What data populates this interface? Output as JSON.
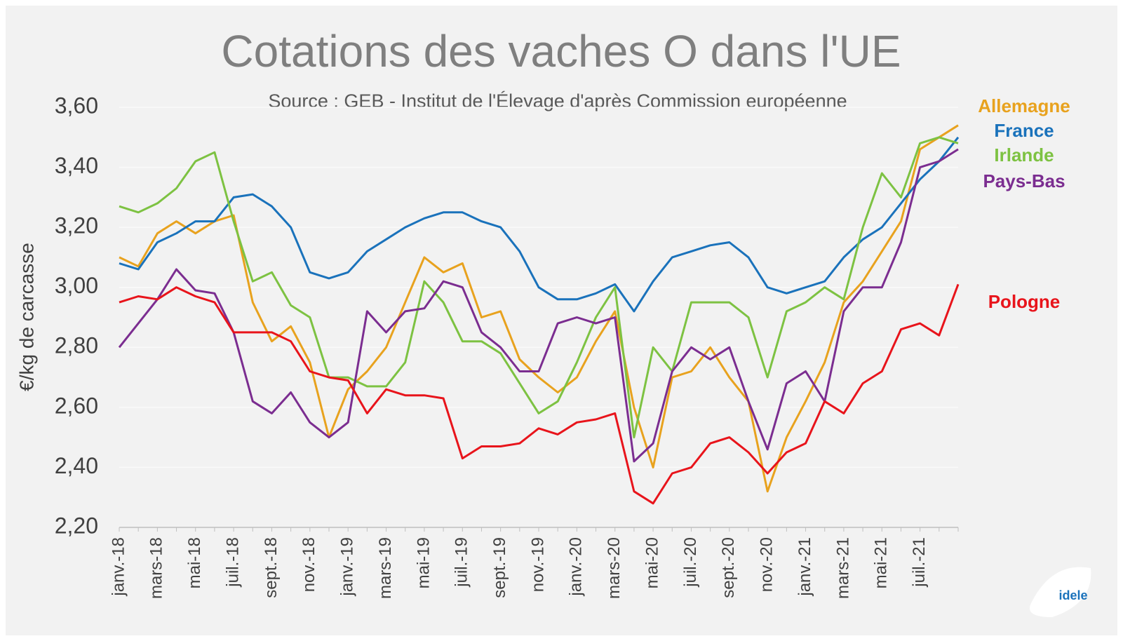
{
  "chart_data": {
    "type": "line",
    "title": "Cotations des vaches O dans l'UE",
    "subtitle": "Source : GEB - Institut de l'Élevage d'après Commission européenne",
    "y_label": "€/kg de carcasse",
    "logo_text": "idele",
    "grid": true,
    "ylim": [
      2.2,
      3.6
    ],
    "yticks": [
      {
        "value": 2.2,
        "label": "2,20"
      },
      {
        "value": 2.4,
        "label": "2,40"
      },
      {
        "value": 2.6,
        "label": "2,60"
      },
      {
        "value": 2.8,
        "label": "2,80"
      },
      {
        "value": 3.0,
        "label": "3,00"
      },
      {
        "value": 3.2,
        "label": "3,20"
      },
      {
        "value": 3.4,
        "label": "3,40"
      },
      {
        "value": 3.6,
        "label": "3,60"
      }
    ],
    "categories": [
      "janv.-18",
      null,
      "mars-18",
      null,
      "mai-18",
      null,
      "juil.-18",
      null,
      "sept.-18",
      null,
      "nov.-18",
      null,
      "janv.-19",
      null,
      "mars-19",
      null,
      "mai-19",
      null,
      "juil.-19",
      null,
      "sept.-19",
      null,
      "nov.-19",
      null,
      "janv.-20",
      null,
      "mars-20",
      null,
      "mai-20",
      null,
      "juil.-20",
      null,
      "sept.-20",
      null,
      "nov.-20",
      null,
      "janv.-21",
      null,
      "mars-21",
      null,
      "mai-21",
      null,
      "juil.-21",
      null,
      null
    ],
    "series": [
      {
        "name": "Allemagne",
        "color": "#e8a21e",
        "values": [
          3.1,
          3.07,
          3.18,
          3.22,
          3.18,
          3.22,
          3.24,
          2.95,
          2.82,
          2.87,
          2.75,
          2.5,
          2.66,
          2.72,
          2.8,
          2.95,
          3.1,
          3.05,
          3.08,
          2.9,
          2.92,
          2.76,
          2.7,
          2.65,
          2.7,
          2.82,
          2.92,
          2.6,
          2.4,
          2.7,
          2.72,
          2.8,
          2.7,
          2.62,
          2.32,
          2.5,
          2.62,
          2.75,
          2.95,
          3.02,
          3.12,
          3.22,
          3.46,
          3.5,
          3.54
        ]
      },
      {
        "name": "France",
        "color": "#1a72bb",
        "values": [
          3.08,
          3.06,
          3.15,
          3.18,
          3.22,
          3.22,
          3.3,
          3.31,
          3.27,
          3.2,
          3.05,
          3.03,
          3.05,
          3.12,
          3.16,
          3.2,
          3.23,
          3.25,
          3.25,
          3.22,
          3.2,
          3.12,
          3.0,
          2.96,
          2.96,
          2.98,
          3.01,
          2.92,
          3.02,
          3.1,
          3.12,
          3.14,
          3.15,
          3.1,
          3.0,
          2.98,
          3.0,
          3.02,
          3.1,
          3.16,
          3.2,
          3.28,
          3.36,
          3.42,
          3.5
        ]
      },
      {
        "name": "Irlande",
        "color": "#7dc242",
        "values": [
          3.27,
          3.25,
          3.28,
          3.33,
          3.42,
          3.45,
          3.22,
          3.02,
          3.05,
          2.94,
          2.9,
          2.7,
          2.7,
          2.67,
          2.67,
          2.75,
          3.02,
          2.95,
          2.82,
          2.82,
          2.78,
          2.68,
          2.58,
          2.62,
          2.75,
          2.9,
          3.0,
          2.5,
          2.8,
          2.72,
          2.95,
          2.95,
          2.95,
          2.9,
          2.7,
          2.92,
          2.95,
          3.0,
          2.96,
          3.2,
          3.38,
          3.3,
          3.48,
          3.5,
          3.48
        ]
      },
      {
        "name": "Pays-Bas",
        "color": "#7b2d90",
        "values": [
          2.8,
          2.88,
          2.96,
          3.06,
          2.99,
          2.98,
          2.85,
          2.62,
          2.58,
          2.65,
          2.55,
          2.5,
          2.55,
          2.92,
          2.85,
          2.92,
          2.93,
          3.02,
          3.0,
          2.85,
          2.8,
          2.72,
          2.72,
          2.88,
          2.9,
          2.88,
          2.9,
          2.42,
          2.48,
          2.72,
          2.8,
          2.76,
          2.8,
          2.62,
          2.46,
          2.68,
          2.72,
          2.62,
          2.92,
          3.0,
          3.0,
          3.15,
          3.4,
          3.42,
          3.46
        ]
      },
      {
        "name": "Pologne",
        "color": "#e8141b",
        "values": [
          2.95,
          2.97,
          2.96,
          3.0,
          2.97,
          2.95,
          2.85,
          2.85,
          2.85,
          2.82,
          2.72,
          2.7,
          2.69,
          2.58,
          2.66,
          2.64,
          2.64,
          2.63,
          2.43,
          2.47,
          2.47,
          2.48,
          2.53,
          2.51,
          2.55,
          2.56,
          2.58,
          2.32,
          2.28,
          2.38,
          2.4,
          2.48,
          2.5,
          2.45,
          2.38,
          2.45,
          2.48,
          2.62,
          2.58,
          2.68,
          2.72,
          2.86,
          2.88,
          2.84,
          3.01
        ]
      }
    ]
  }
}
